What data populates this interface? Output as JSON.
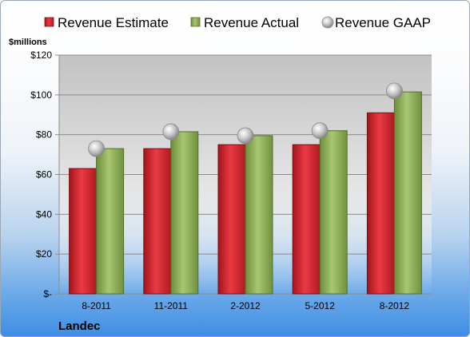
{
  "chart_data": {
    "type": "bar",
    "categories": [
      "8-2011",
      "11-2011",
      "2-2012",
      "5-2012",
      "8-2012"
    ],
    "series": [
      {
        "name": "Revenue Estimate",
        "kind": "bar",
        "color": "#d0202a",
        "values": [
          63,
          73,
          75,
          75,
          91
        ]
      },
      {
        "name": "Revenue Actual",
        "kind": "bar",
        "color": "#8aad52",
        "values": [
          73,
          81.5,
          79.5,
          82,
          101.5
        ]
      },
      {
        "name": "Revenue GAAP",
        "kind": "point",
        "color": "#b8b8b8",
        "values": [
          73,
          81.5,
          79.5,
          82,
          102
        ]
      }
    ],
    "ylabel": "$millions",
    "ylim": [
      0,
      120
    ],
    "yticks": [
      {
        "value": 0,
        "label": "$-"
      },
      {
        "value": 20,
        "label": "$20"
      },
      {
        "value": 40,
        "label": "$40"
      },
      {
        "value": 60,
        "label": "$60"
      },
      {
        "value": 80,
        "label": "$80"
      },
      {
        "value": 100,
        "label": "$100"
      },
      {
        "value": 120,
        "label": "$120"
      }
    ],
    "grid": true,
    "legend_position": "top"
  },
  "company": "Landec"
}
